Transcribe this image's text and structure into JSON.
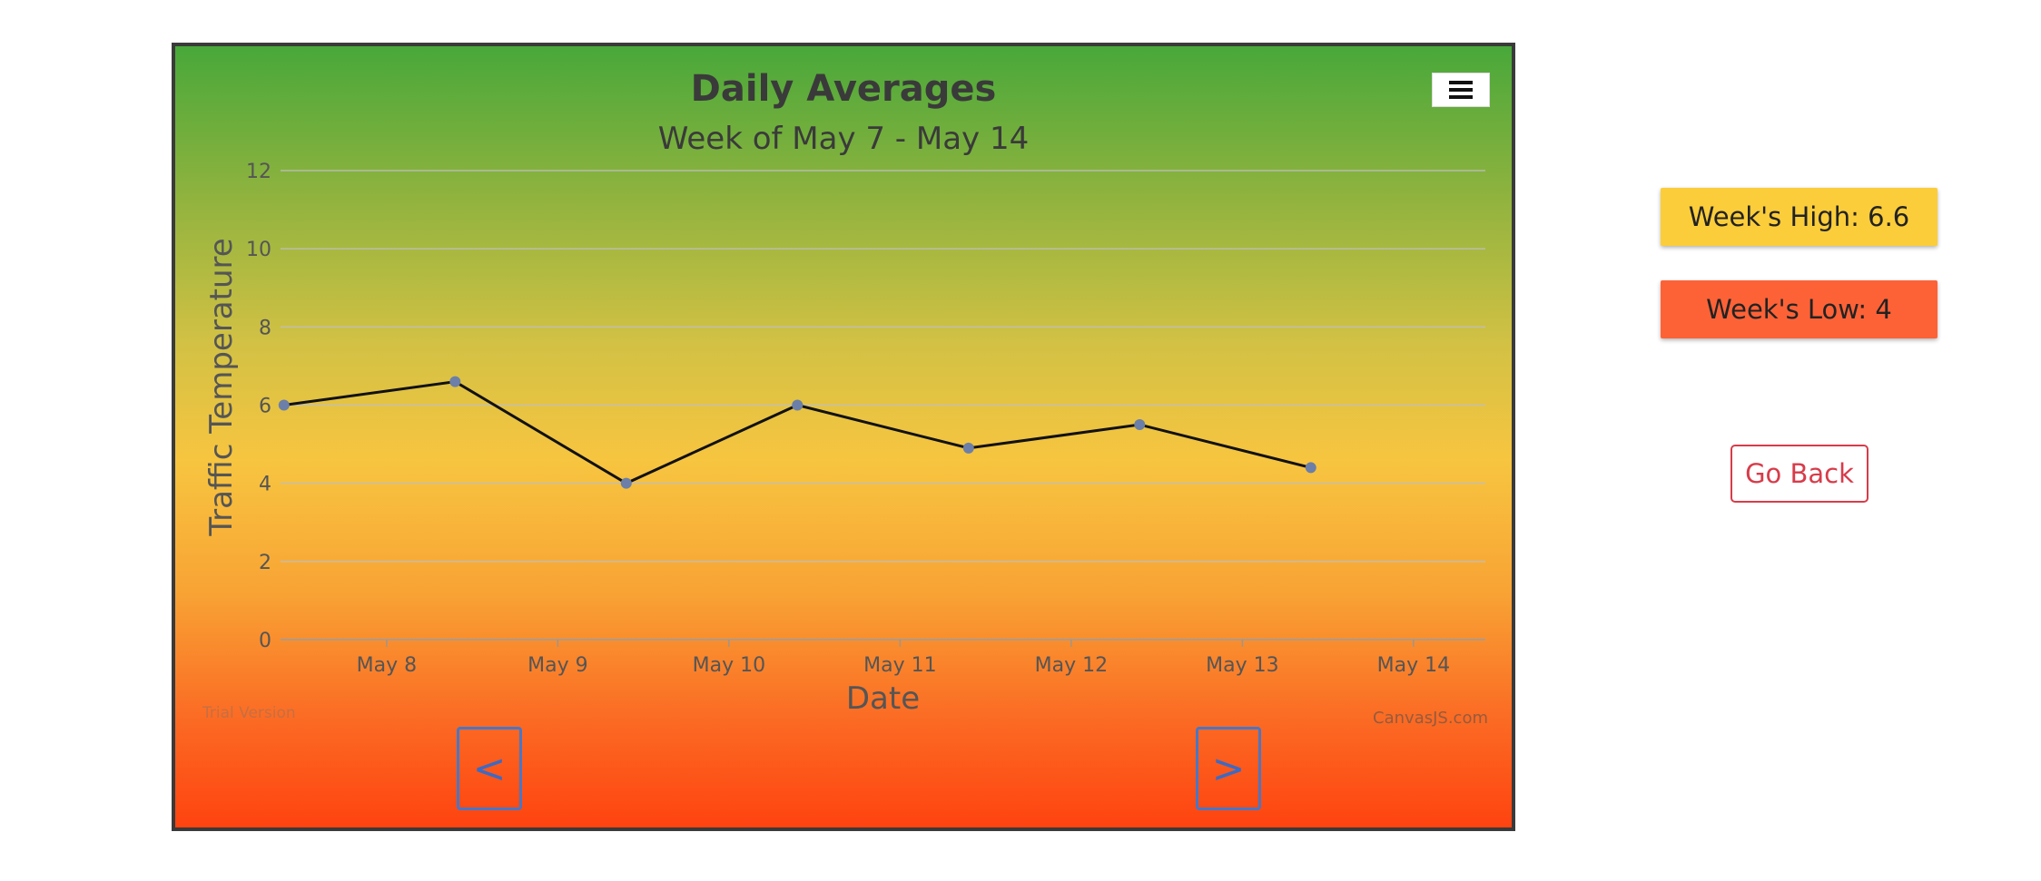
{
  "chart_data": {
    "type": "line",
    "title": "Daily Averages",
    "subtitle": "Week of May 7 - May 14",
    "xlabel": "Date",
    "ylabel": "Traffic Temperature",
    "ylim": [
      0,
      12
    ],
    "yticks": [
      "0",
      "2",
      "4",
      "6",
      "8",
      "10",
      "12"
    ],
    "xticks": [
      "May 8",
      "May 9",
      "May 10",
      "May 11",
      "May 12",
      "May 13",
      "May 14"
    ],
    "xrange": [
      "May 7 10:00",
      "May 14 09:00"
    ],
    "x": [
      "May 7",
      "May 8",
      "May 9",
      "May 10",
      "May 11",
      "May 12",
      "May 13"
    ],
    "values": [
      6.0,
      6.6,
      4.0,
      6.0,
      4.9,
      5.5,
      4.4
    ],
    "grid": true,
    "line_color": "#111111",
    "marker_color": "#6b7fa8"
  },
  "watermarks": {
    "left": "Trial Version",
    "right": "CanvasJS.com"
  },
  "nav": {
    "prev_label": "<",
    "next_label": ">"
  },
  "stats": {
    "high_label": "Week's High: 6.6",
    "low_label": "Week's Low: 4"
  },
  "actions": {
    "go_back_label": "Go Back"
  },
  "colors": {
    "high_bg": "#fbcd3a",
    "low_bg": "#fd6237",
    "go_back": "#d73c4a",
    "nav_button": "#3d6ac2"
  },
  "icons": {
    "menu": "hamburger-menu-icon"
  }
}
